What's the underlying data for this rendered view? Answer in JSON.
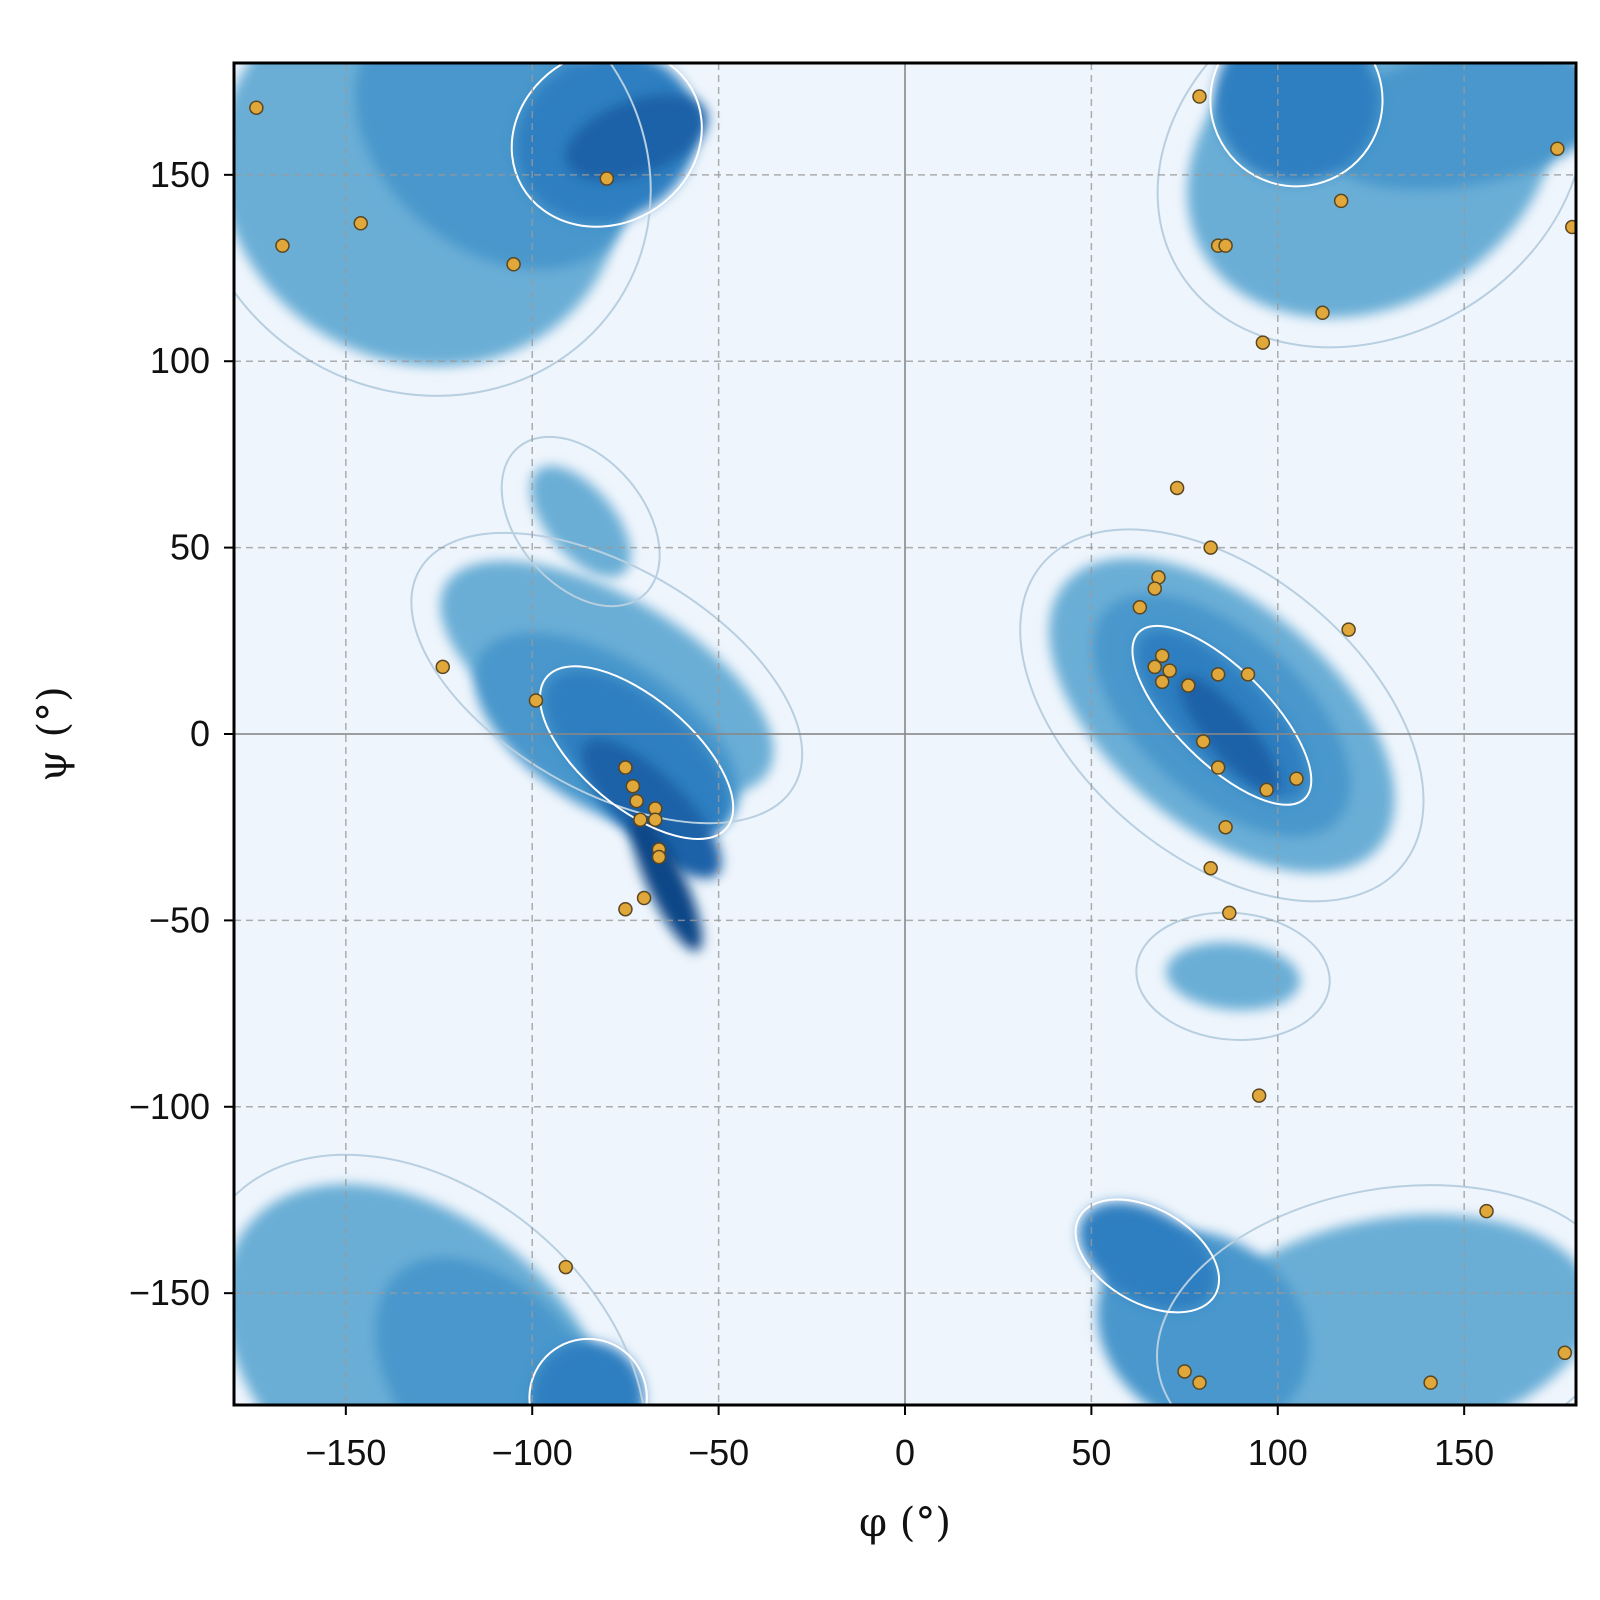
{
  "chart_data": {
    "type": "scatter",
    "title": "",
    "xlabel": "φ (°)",
    "ylabel": "ψ (°)",
    "xlim": [
      -180,
      180
    ],
    "ylim": [
      -180,
      180
    ],
    "xticks": [
      -150,
      -100,
      -50,
      0,
      50,
      100,
      150
    ],
    "yticks": [
      -150,
      -100,
      -50,
      0,
      50,
      100,
      150
    ],
    "xtick_labels": [
      "−150",
      "−100",
      "−50",
      "0",
      "50",
      "100",
      "150"
    ],
    "ytick_labels": [
      "−150",
      "−100",
      "−50",
      "0",
      "50",
      "100",
      "150"
    ],
    "grid": true,
    "background": "density heatmap of allowed backbone dihedral regions with contour lines",
    "colors": {
      "background": "#eff5fc",
      "density_low": "#6baed6",
      "density_mid": "#2f7fc1",
      "density_high": "#08306b",
      "contour_inner": "#ffffff",
      "contour_outer": "#b7cfe0",
      "points": "#e0a83a",
      "points_edge": "#5a4620",
      "grid": "#9a9a9a"
    },
    "density_regions": [
      {
        "name": "right-handed-helix",
        "center": [
          -65,
          -35
        ],
        "levels": [
          [
            -80,
            15,
            22,
            -60,
            50
          ],
          [
            -80,
            0,
            20,
            -58,
            40
          ],
          [
            -72,
            -5,
            14,
            -50,
            30
          ],
          [
            -68,
            -20,
            9,
            -45,
            25
          ],
          [
            -64,
            -40,
            5,
            -25,
            20
          ]
        ]
      },
      {
        "name": "beta-sheet-top",
        "center": [
          -110,
          150
        ],
        "levels": [
          [
            -130,
            150,
            55,
            -150,
            50
          ],
          [
            -110,
            160,
            42,
            -140,
            30
          ],
          [
            -80,
            160,
            22,
            -120,
            25
          ],
          [
            -72,
            160,
            10,
            -110,
            20
          ]
        ]
      },
      {
        "name": "beta-sheet-bottom",
        "center": [
          -110,
          -170
        ],
        "levels": [
          [
            -130,
            -170,
            60,
            -140,
            40
          ],
          [
            -110,
            -175,
            40,
            -130,
            25
          ],
          [
            -85,
            -178,
            15,
            -120,
            15
          ]
        ]
      },
      {
        "name": "small-bridge",
        "center": [
          -87,
          57
        ],
        "levels": [
          [
            -87,
            57,
            9,
            -40,
            18
          ]
        ]
      },
      {
        "name": "left-handed-helix",
        "center": [
          85,
          5
        ],
        "levels": [
          [
            85,
            5,
            30,
            -50,
            55
          ],
          [
            85,
            5,
            22,
            -48,
            42
          ],
          [
            85,
            5,
            12,
            -45,
            30
          ],
          [
            87,
            0,
            6,
            -40,
            20
          ]
        ]
      },
      {
        "name": "left-tail",
        "center": [
          88,
          -65
        ],
        "levels": [
          [
            88,
            -65,
            9,
            -85,
            18
          ]
        ]
      },
      {
        "name": "left-top",
        "center": [
          120,
          150
        ],
        "levels": [
          [
            125,
            155,
            52,
            -30,
            40
          ],
          [
            150,
            165,
            40,
            -10,
            18
          ],
          [
            105,
            170,
            22,
            -40,
            22
          ]
        ]
      },
      {
        "name": "left-bottom",
        "center": [
          120,
          -160
        ],
        "levels": [
          [
            130,
            -160,
            55,
            -10,
            30
          ],
          [
            80,
            -160,
            25,
            -55,
            30
          ],
          [
            65,
            -140,
            12,
            -60,
            20
          ]
        ]
      }
    ],
    "series": [
      {
        "points": [
          [
            -174,
            168
          ],
          [
            -167,
            131
          ],
          [
            -146,
            137
          ],
          [
            -105,
            126
          ],
          [
            -80,
            149
          ],
          [
            -124,
            18
          ],
          [
            -99,
            9
          ],
          [
            -75,
            -9
          ],
          [
            -73,
            -14
          ],
          [
            -72,
            -18
          ],
          [
            -71,
            -23
          ],
          [
            -67,
            -20
          ],
          [
            -67,
            -23
          ],
          [
            -66,
            -31
          ],
          [
            -66,
            -33
          ],
          [
            -70,
            -44
          ],
          [
            -75,
            -47
          ],
          [
            -91,
            -143
          ],
          [
            79,
            171
          ],
          [
            84,
            131
          ],
          [
            86,
            131
          ],
          [
            117,
            143
          ],
          [
            175,
            157
          ],
          [
            179,
            136
          ],
          [
            112,
            113
          ],
          [
            96,
            105
          ],
          [
            73,
            66
          ],
          [
            82,
            50
          ],
          [
            68,
            42
          ],
          [
            67,
            39
          ],
          [
            63,
            34
          ],
          [
            119,
            28
          ],
          [
            69,
            21
          ],
          [
            67,
            18
          ],
          [
            71,
            17
          ],
          [
            69,
            14
          ],
          [
            84,
            16
          ],
          [
            92,
            16
          ],
          [
            76,
            13
          ],
          [
            80,
            -2
          ],
          [
            84,
            -9
          ],
          [
            105,
            -12
          ],
          [
            97,
            -15
          ],
          [
            86,
            -25
          ],
          [
            82,
            -36
          ],
          [
            87,
            -48
          ],
          [
            95,
            -97
          ],
          [
            156,
            -128
          ],
          [
            75,
            -171
          ],
          [
            79,
            -174
          ],
          [
            141,
            -174
          ],
          [
            177,
            -166
          ]
        ]
      }
    ]
  }
}
